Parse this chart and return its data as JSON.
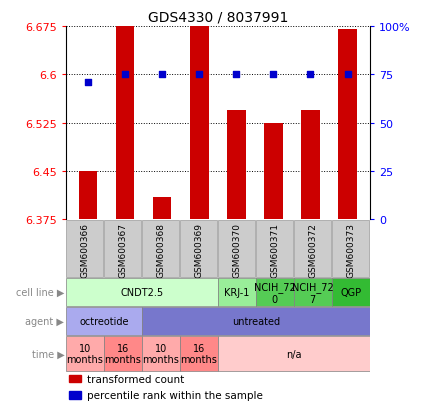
{
  "title": "GDS4330 / 8037991",
  "samples": [
    "GSM600366",
    "GSM600367",
    "GSM600368",
    "GSM600369",
    "GSM600370",
    "GSM600371",
    "GSM600372",
    "GSM600373"
  ],
  "bar_values": [
    6.45,
    6.675,
    6.41,
    6.68,
    6.545,
    6.525,
    6.545,
    6.67
  ],
  "percentile_values": [
    71,
    75,
    75,
    75,
    75,
    75,
    75,
    75
  ],
  "ylim_left": [
    6.375,
    6.675
  ],
  "ylim_right": [
    0,
    100
  ],
  "yticks_left": [
    6.375,
    6.45,
    6.525,
    6.6,
    6.675
  ],
  "yticks_right": [
    0,
    25,
    50,
    75,
    100
  ],
  "ytick_labels_left": [
    "6.375",
    "6.45",
    "6.525",
    "6.6",
    "6.675"
  ],
  "ytick_labels_right": [
    "0",
    "25",
    "50",
    "75",
    "100%"
  ],
  "bar_color": "#cc0000",
  "percentile_color": "#0000cc",
  "cell_line_groups": [
    {
      "label": "CNDT2.5",
      "start": 0,
      "end": 3,
      "color": "#ccffcc"
    },
    {
      "label": "KRJ-1",
      "start": 4,
      "end": 4,
      "color": "#99ee99"
    },
    {
      "label": "NCIH_72\n0",
      "start": 5,
      "end": 5,
      "color": "#55cc55"
    },
    {
      "label": "NCIH_72\n7",
      "start": 6,
      "end": 6,
      "color": "#55cc55"
    },
    {
      "label": "QGP",
      "start": 7,
      "end": 7,
      "color": "#33bb33"
    }
  ],
  "agent_groups": [
    {
      "label": "octreotide",
      "start": 0,
      "end": 1,
      "color": "#aaaaee"
    },
    {
      "label": "untreated",
      "start": 2,
      "end": 7,
      "color": "#7777cc"
    }
  ],
  "time_groups": [
    {
      "label": "10\nmonths",
      "start": 0,
      "end": 0,
      "color": "#ffaaaa"
    },
    {
      "label": "16\nmonths",
      "start": 1,
      "end": 1,
      "color": "#ff8888"
    },
    {
      "label": "10\nmonths",
      "start": 2,
      "end": 2,
      "color": "#ffaaaa"
    },
    {
      "label": "16\nmonths",
      "start": 3,
      "end": 3,
      "color": "#ff8888"
    },
    {
      "label": "n/a",
      "start": 4,
      "end": 7,
      "color": "#ffcccc"
    }
  ],
  "row_labels": [
    "cell line",
    "agent",
    "time"
  ],
  "legend_items": [
    {
      "label": "transformed count",
      "color": "#cc0000"
    },
    {
      "label": "percentile rank within the sample",
      "color": "#0000cc"
    }
  ],
  "background_color": "#ffffff",
  "bar_bottom": 6.375,
  "sample_box_color": "#cccccc",
  "sample_box_edge": "#999999"
}
